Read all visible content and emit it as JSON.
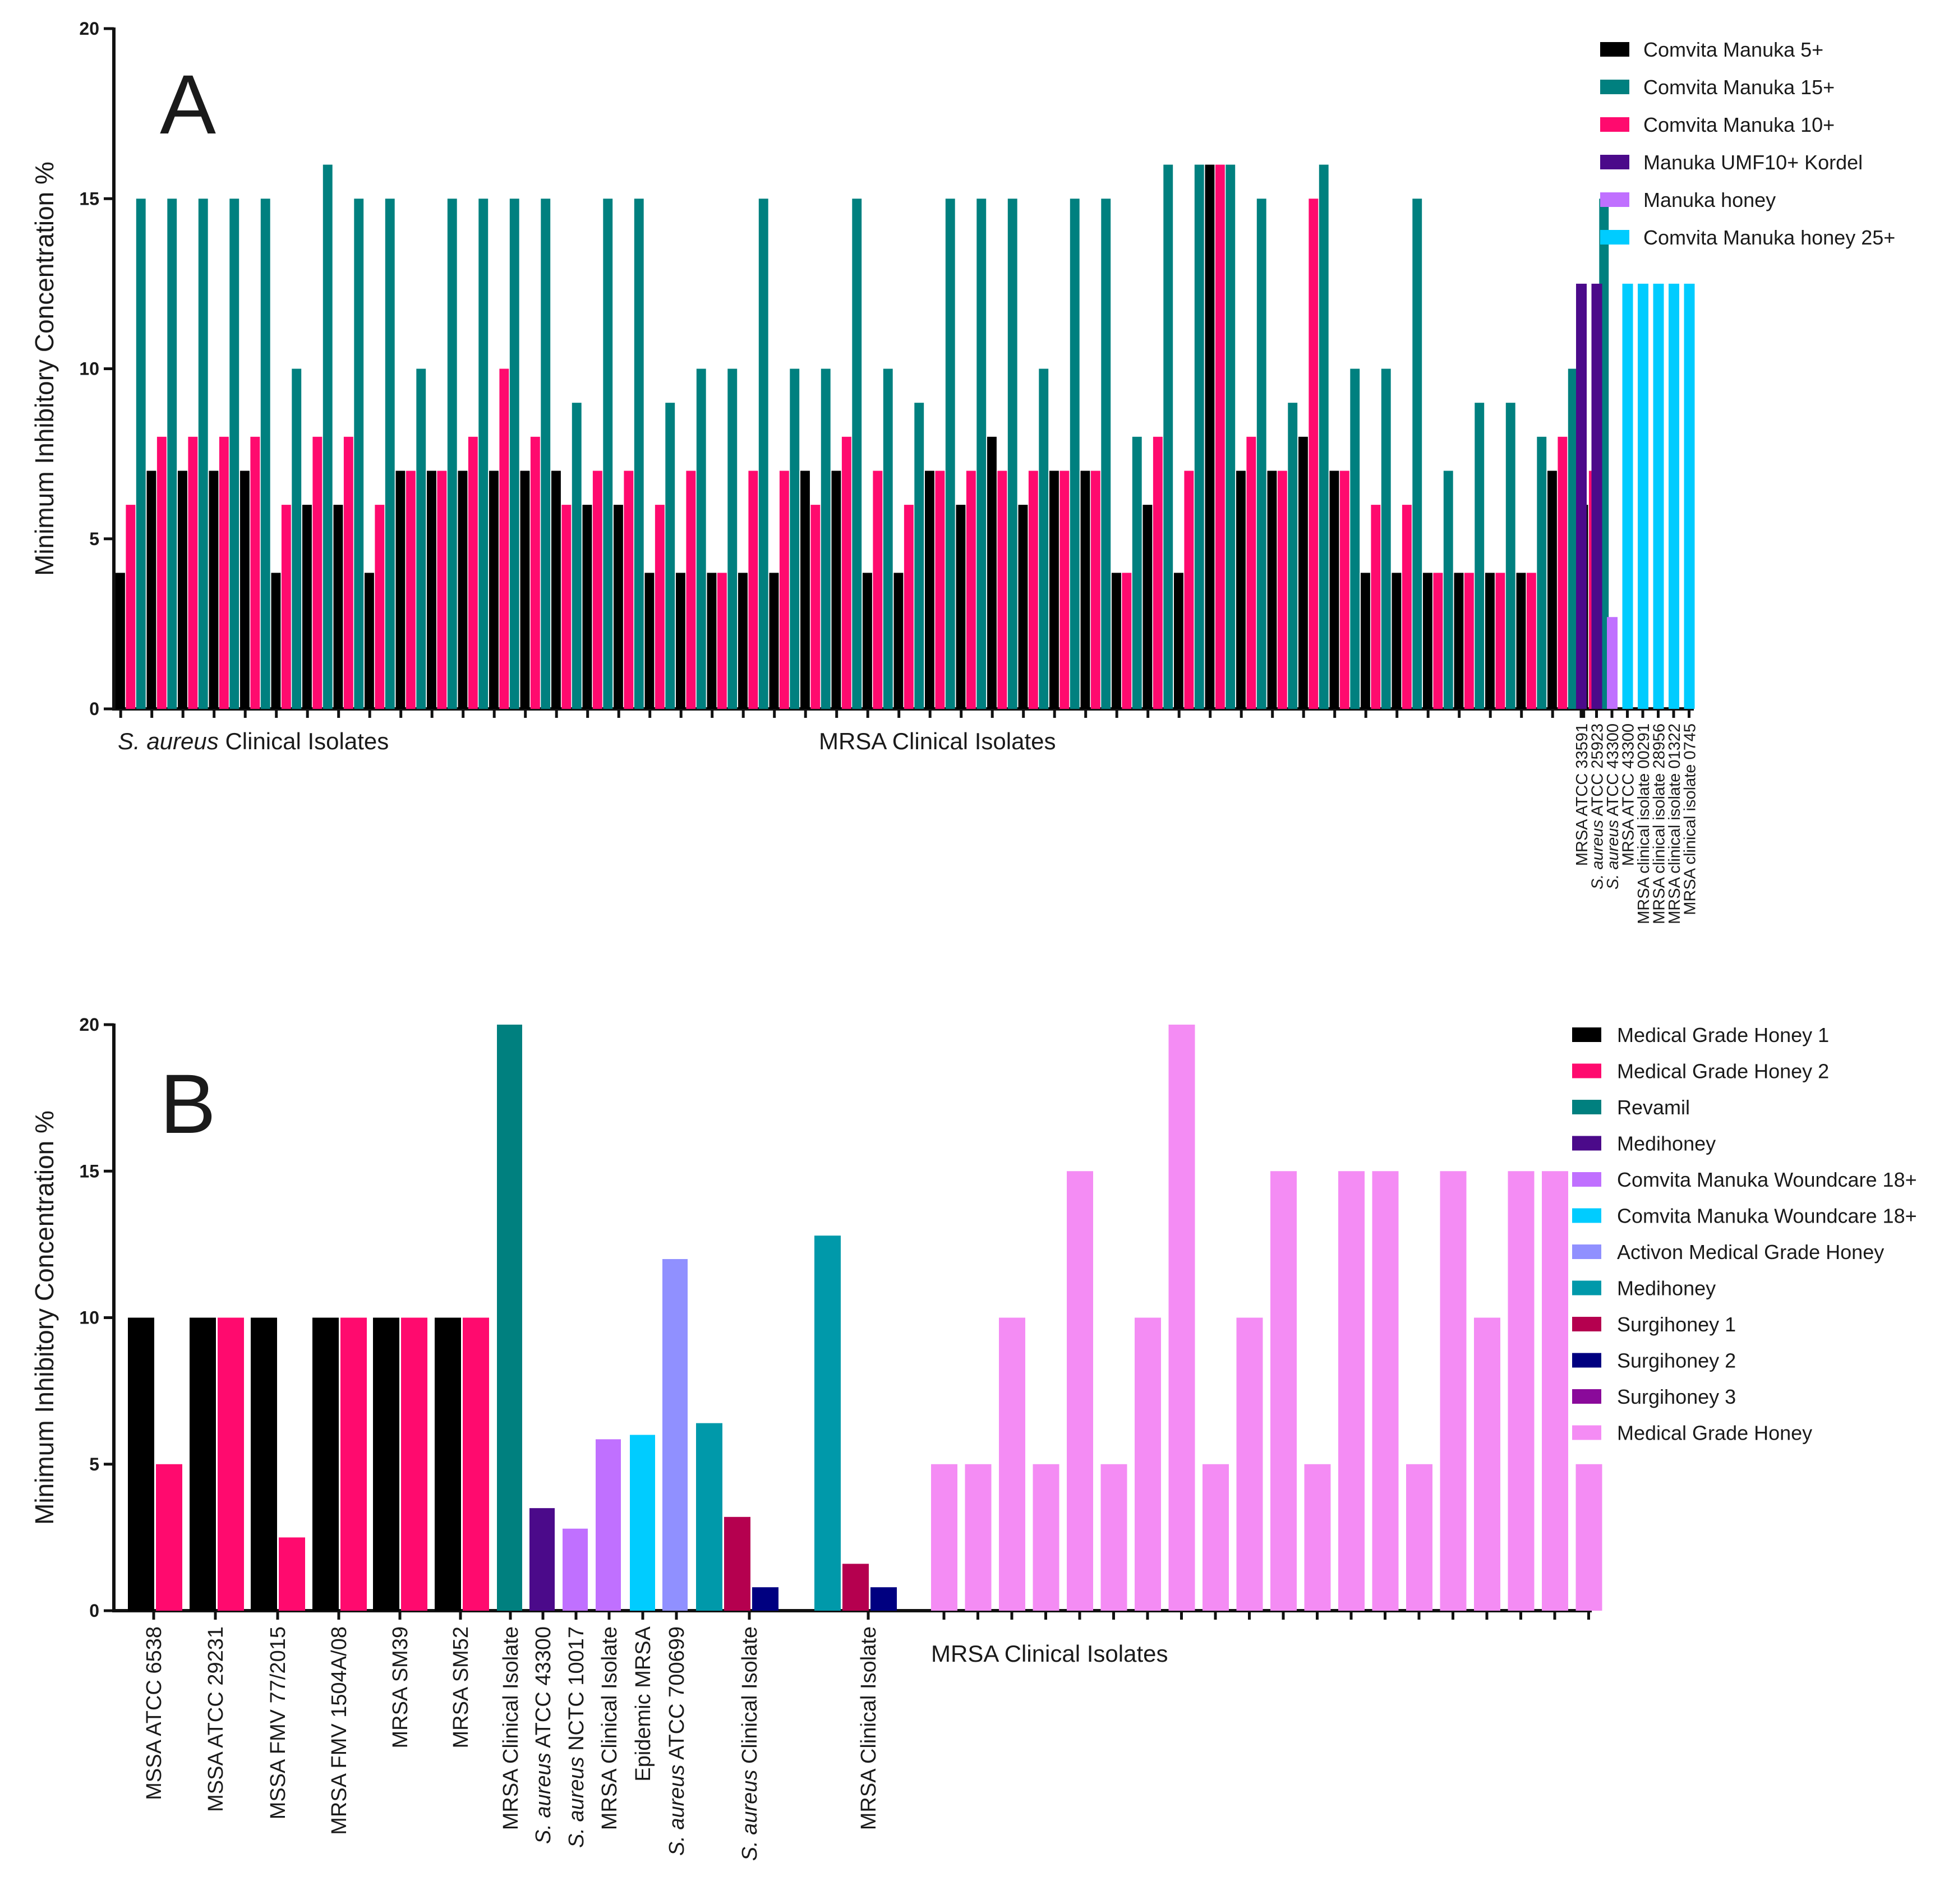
{
  "chart_data": [
    {
      "panel": "A",
      "type": "bar",
      "ylabel": "Minimum Inhibitory Concentration %",
      "ylim": [
        0,
        20
      ],
      "yticks": [
        0,
        5,
        10,
        15,
        20
      ],
      "grid": false,
      "legend_position": "top-right",
      "series_styles": [
        {
          "name": "Comvita Manuka 5+",
          "color": "#000000"
        },
        {
          "name": "Comvita Manuka 15+",
          "color": "#00807f"
        },
        {
          "name": "Comvita Manuka 10+",
          "color": "#ff0a6e"
        },
        {
          "name": "Manuka UMF10+ Kordel",
          "color": "#4b0a8a"
        },
        {
          "name": "Manuka honey",
          "color": "#c070ff"
        },
        {
          "name": "Comvita Manuka honey 25+",
          "color": "#00ccff"
        }
      ],
      "isolates": [
        {
          "values": [
            4,
            15,
            6
          ]
        },
        {
          "values": [
            7,
            15,
            8
          ]
        },
        {
          "values": [
            7,
            15,
            8
          ]
        },
        {
          "values": [
            7,
            15,
            8
          ]
        },
        {
          "values": [
            7,
            15,
            8
          ]
        },
        {
          "values": [
            4,
            10,
            6
          ]
        },
        {
          "values": [
            6,
            16,
            8
          ]
        },
        {
          "values": [
            6,
            15,
            8
          ]
        },
        {
          "values": [
            4,
            15,
            6
          ]
        },
        {
          "values": [
            7,
            10,
            7
          ]
        },
        {
          "values": [
            7,
            15,
            7
          ]
        },
        {
          "values": [
            7,
            15,
            8
          ]
        },
        {
          "values": [
            7,
            15,
            10
          ]
        },
        {
          "values": [
            7,
            15,
            8
          ]
        },
        {
          "values": [
            7,
            9,
            6
          ]
        },
        {
          "values": [
            6,
            15,
            7
          ]
        },
        {
          "values": [
            6,
            15,
            7
          ]
        },
        {
          "values": [
            4,
            9,
            6
          ]
        },
        {
          "values": [
            4,
            10,
            7
          ]
        },
        {
          "values": [
            4,
            10,
            4
          ]
        },
        {
          "values": [
            4,
            15,
            7
          ]
        },
        {
          "values": [
            4,
            10,
            7
          ]
        },
        {
          "values": [
            7,
            10,
            6
          ]
        },
        {
          "values": [
            7,
            15,
            8
          ]
        },
        {
          "values": [
            4,
            10,
            7
          ]
        },
        {
          "values": [
            4,
            9,
            6
          ]
        },
        {
          "values": [
            7,
            15,
            7
          ]
        },
        {
          "values": [
            6,
            15,
            7
          ]
        },
        {
          "values": [
            8,
            15,
            7
          ]
        },
        {
          "values": [
            6,
            10,
            7
          ]
        },
        {
          "values": [
            7,
            15,
            7
          ]
        },
        {
          "values": [
            7,
            15,
            7
          ]
        },
        {
          "values": [
            4,
            8,
            4
          ]
        },
        {
          "values": [
            6,
            16,
            8
          ]
        },
        {
          "values": [
            4,
            16,
            7
          ]
        },
        {
          "values": [
            16,
            16,
            16
          ]
        },
        {
          "values": [
            7,
            15,
            8
          ]
        },
        {
          "values": [
            7,
            9,
            7
          ]
        },
        {
          "values": [
            8,
            16,
            15
          ]
        },
        {
          "values": [
            7,
            10,
            7
          ]
        },
        {
          "values": [
            4,
            10,
            6
          ]
        },
        {
          "values": [
            4,
            15,
            6
          ]
        },
        {
          "values": [
            4,
            7,
            4
          ]
        },
        {
          "values": [
            4,
            9,
            4
          ]
        },
        {
          "values": [
            4,
            9,
            4
          ]
        },
        {
          "values": [
            4,
            8,
            4
          ]
        },
        {
          "values": [
            7,
            10,
            8
          ]
        },
        {
          "values": [
            6,
            15,
            7
          ]
        }
      ],
      "reference_bars": [
        {
          "label": "MRSA ATCC 33591",
          "series": "Manuka UMF10+ Kordel",
          "value": 12.5
        },
        {
          "label": "S. aureus ATCC 25923",
          "series": "Manuka UMF10+ Kordel",
          "value": 12.5
        },
        {
          "label": "S. aureus ATCC 43300",
          "series": "Manuka honey",
          "value": 2.7
        },
        {
          "label": "MRSA ATCC 43300",
          "series": "Comvita Manuka honey 25+",
          "value": 12.5
        },
        {
          "label": "MRSA clinical isolate 00291",
          "series": "Comvita Manuka honey 25+",
          "value": 12.5
        },
        {
          "label": "MRSA clinical isolate 28956",
          "series": "Comvita Manuka honey 25+",
          "value": 12.5
        },
        {
          "label": "MRSA clinical isolate 01322",
          "series": "Comvita Manuka honey 25+",
          "value": 12.5
        },
        {
          "label": "MRSA clinical isolate 0745",
          "series": "Comvita Manuka honey 25+",
          "value": 12.5
        }
      ],
      "group_labels": [
        {
          "italic": "S. aureus",
          "text": " Clinical Isolates"
        },
        {
          "italic": "",
          "text": "MRSA Clinical Isolates"
        }
      ]
    },
    {
      "panel": "B",
      "type": "bar",
      "ylabel": "Minimum Inhibitory Concentration %",
      "ylim": [
        0,
        20
      ],
      "yticks": [
        0,
        5,
        10,
        15,
        20
      ],
      "grid": false,
      "legend_position": "top-right",
      "series_styles": [
        {
          "name": "Medical Grade Honey 1",
          "color": "#000000"
        },
        {
          "name": "Medical Grade Honey 2",
          "color": "#ff0a6e"
        },
        {
          "name": "Revamil",
          "color": "#00807f"
        },
        {
          "name": "Medihoney",
          "color": "#4b0a8a"
        },
        {
          "name": "Comvita Manuka Woundcare 18+",
          "color": "#c070ff"
        },
        {
          "name": "Comvita Manuka Woundcare 18+",
          "color": "#00ccff"
        },
        {
          "name": "Activon Medical Grade Honey",
          "color": "#9090ff"
        },
        {
          "name": "Medihoney",
          "color": "#0099aa"
        },
        {
          "name": "Surgihoney 1",
          "color": "#b5004f"
        },
        {
          "name": "Surgihoney 2",
          "color": "#000080"
        },
        {
          "name": "Surgihoney 3",
          "color": "#8a0a9a"
        },
        {
          "name": "Medical Grade Honey",
          "color": "#f48cf4"
        }
      ],
      "categories": [
        {
          "label": "MSSA ATCC 6538",
          "italic": "",
          "bars": [
            {
              "series": 0,
              "value": 10
            },
            {
              "series": 1,
              "value": 5
            }
          ]
        },
        {
          "label": "MSSA ATCC 29231",
          "italic": "",
          "bars": [
            {
              "series": 0,
              "value": 10
            },
            {
              "series": 1,
              "value": 10
            }
          ]
        },
        {
          "label": "MSSA FMV 77/2015",
          "italic": "",
          "bars": [
            {
              "series": 0,
              "value": 10
            },
            {
              "series": 1,
              "value": 2.5
            }
          ]
        },
        {
          "label": "MRSA FMV 1504A/08",
          "italic": "",
          "bars": [
            {
              "series": 0,
              "value": 10
            },
            {
              "series": 1,
              "value": 10
            }
          ]
        },
        {
          "label": "MRSA SM39",
          "italic": "",
          "bars": [
            {
              "series": 0,
              "value": 10
            },
            {
              "series": 1,
              "value": 10
            }
          ]
        },
        {
          "label": "MRSA SM52",
          "italic": "",
          "bars": [
            {
              "series": 0,
              "value": 10
            },
            {
              "series": 1,
              "value": 10
            }
          ]
        },
        {
          "label": "MRSA Clinical Isolate",
          "italic": "",
          "bars": [
            {
              "series": 2,
              "value": 20
            }
          ]
        },
        {
          "label": " ATCC 43300",
          "italic": "S. aureus",
          "bars": [
            {
              "series": 3,
              "value": 3.5
            }
          ]
        },
        {
          "label": " NCTC 10017",
          "italic": "S. aureus",
          "bars": [
            {
              "series": 4,
              "value": 2.8
            }
          ]
        },
        {
          "label": "MRSA Clinical Isolate",
          "italic": "",
          "bars": [
            {
              "series": 4,
              "value": 5.85
            }
          ]
        },
        {
          "label": "Epidemic MRSA",
          "italic": "",
          "bars": [
            {
              "series": 5,
              "value": 6
            }
          ]
        },
        {
          "label": " ATCC 700699",
          "italic": "S. aureus",
          "bars": [
            {
              "series": 6,
              "value": 12
            }
          ]
        },
        {
          "label": " Clinical Isolate",
          "italic": "S. aureus",
          "bars": [
            {
              "series": 7,
              "value": 6.4
            },
            {
              "series": 8,
              "value": 3.2
            },
            {
              "series": 9,
              "value": 0.8
            }
          ]
        },
        {
          "label": "MRSA Clinical Isolate",
          "italic": "",
          "bars": [
            {
              "series": 7,
              "value": 12.8
            },
            {
              "series": 8,
              "value": 1.6
            },
            {
              "series": 9,
              "value": 0.8
            }
          ]
        }
      ],
      "clinical_isolates": {
        "series": "Medical Grade Honey",
        "label": "MRSA Clinical Isolates",
        "values": [
          5,
          5,
          10,
          5,
          15,
          5,
          10,
          20,
          5,
          10,
          15,
          5,
          15,
          15,
          5,
          15,
          10,
          15,
          15,
          5
        ]
      }
    }
  ]
}
